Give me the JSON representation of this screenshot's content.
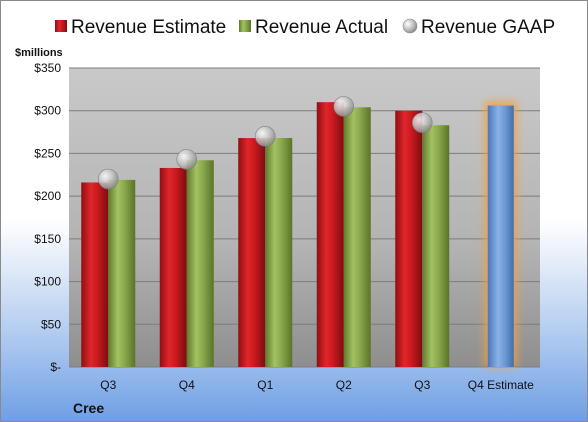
{
  "chart_data": {
    "type": "bar",
    "company": "Cree",
    "unit_label": "$millions",
    "categories": [
      "Q3",
      "Q4",
      "Q1",
      "Q2",
      "Q3",
      "Q4 Estimate"
    ],
    "series": [
      {
        "name": "Revenue Estimate",
        "type": "bar",
        "values": [
          216,
          233,
          268,
          310,
          300,
          null
        ]
      },
      {
        "name": "Revenue Actual",
        "type": "bar",
        "values": [
          219,
          242,
          268,
          304,
          283,
          null
        ]
      },
      {
        "name": "Revenue GAAP",
        "type": "scatter",
        "values": [
          220,
          243,
          270,
          305,
          286,
          null
        ]
      }
    ],
    "highlight": {
      "category": "Q4 Estimate",
      "value": 306
    },
    "y_ticks": [
      "$-",
      "$50",
      "$100",
      "$150",
      "$200",
      "$250",
      "$300",
      "$350"
    ],
    "ylim": [
      0,
      350
    ],
    "grid": true,
    "legend_position": "top",
    "colors": {
      "estimate": "#c0181e",
      "actual": "#8aa84c",
      "gaap": "#a8a8a8",
      "highlight": "#6f9ad6",
      "highlight_glow": "#f2a040"
    }
  }
}
